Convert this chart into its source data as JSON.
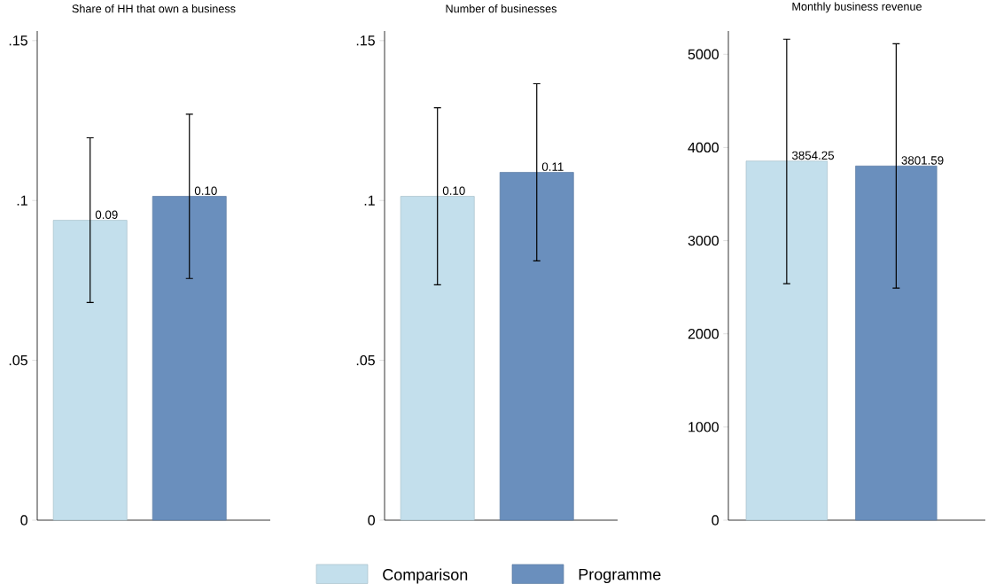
{
  "chart_data": [
    {
      "type": "bar",
      "title": "Share of HH that own a business",
      "categories": [
        null
      ],
      "legend": "bottom",
      "ylim": [
        0,
        0.153
      ],
      "yticks": [
        0,
        {
          "value": 0.05,
          "label": ".05"
        },
        {
          "value": 0.1,
          "label": ".1"
        },
        {
          "value": 0.15,
          "label": ".15"
        }
      ],
      "series": [
        {
          "name": "Comparison",
          "color": "#c3dfec",
          "values": [
            0.0938
          ],
          "errors": [
            [
              0.0681,
              0.1196
            ]
          ],
          "value_labels": [
            "0.09"
          ]
        },
        {
          "name": "Programme",
          "color": "#6a8fbd",
          "values": [
            0.1013
          ],
          "errors": [
            [
              0.0756,
              0.127
            ]
          ],
          "value_labels": [
            "0.10"
          ]
        }
      ]
    },
    {
      "type": "bar",
      "title": "Number of businesses",
      "categories": [
        null
      ],
      "ylim": [
        0,
        0.153
      ],
      "yticks": [
        0,
        {
          "value": 0.05,
          "label": ".05"
        },
        {
          "value": 0.1,
          "label": ".1"
        },
        {
          "value": 0.15,
          "label": ".15"
        }
      ],
      "series": [
        {
          "color": "#c3dfec",
          "values": [
            0.1013
          ],
          "errors": [
            [
              0.0736,
              0.129
            ]
          ],
          "value_labels": [
            "0.10"
          ]
        },
        {
          "color": "#6a8fbd",
          "values": [
            0.1088
          ],
          "errors": [
            [
              0.0811,
              0.1365
            ]
          ],
          "value_labels": [
            "0.11"
          ]
        }
      ]
    },
    {
      "type": "bar",
      "title": "Monthly business revenue",
      "categories": [
        null
      ],
      "ylim": [
        0,
        5250
      ],
      "yticks": [
        0,
        1000,
        2000,
        3000,
        4000,
        5000
      ],
      "series": [
        {
          "color": "#c3dfec",
          "values": [
            3854.25
          ],
          "errors": [
            [
              2538,
              5162
            ]
          ],
          "value_labels": [
            "3854.25"
          ]
        },
        {
          "color": "#6a8fbd",
          "values": [
            3801.59
          ],
          "errors": [
            [
              2490,
              5114
            ]
          ],
          "value_labels": [
            "3801.59"
          ]
        }
      ]
    }
  ]
}
